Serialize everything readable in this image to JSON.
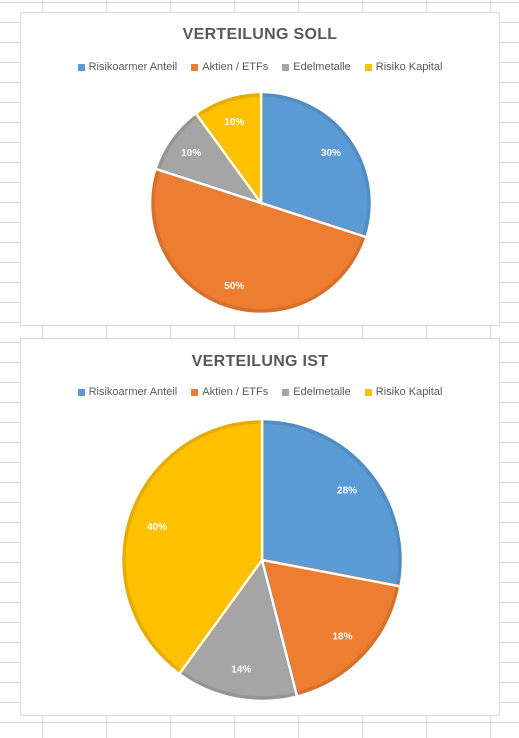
{
  "chart_data": [
    {
      "type": "pie",
      "title": "VERTEILUNG SOLL",
      "categories": [
        "Risikoarmer Anteil",
        "Aktien / ETFs",
        "Edelmetalle",
        "Risiko Kapital"
      ],
      "values": [
        30,
        50,
        10,
        10
      ],
      "labels": [
        "30%",
        "50%",
        "10%",
        "10%"
      ],
      "colors": [
        "#5b9bd5",
        "#ed7d31",
        "#a5a5a5",
        "#ffc000"
      ],
      "legend_position": "top"
    },
    {
      "type": "pie",
      "title": "VERTEILUNG IST",
      "categories": [
        "Risikoarmer Anteil",
        "Aktien / ETFs",
        "Edelmetalle",
        "Risiko Kapital"
      ],
      "values": [
        28,
        18,
        14,
        40
      ],
      "labels": [
        "28%",
        "18%",
        "14%",
        "40%"
      ],
      "colors": [
        "#5b9bd5",
        "#ed7d31",
        "#a5a5a5",
        "#ffc000"
      ],
      "legend_position": "top"
    }
  ]
}
